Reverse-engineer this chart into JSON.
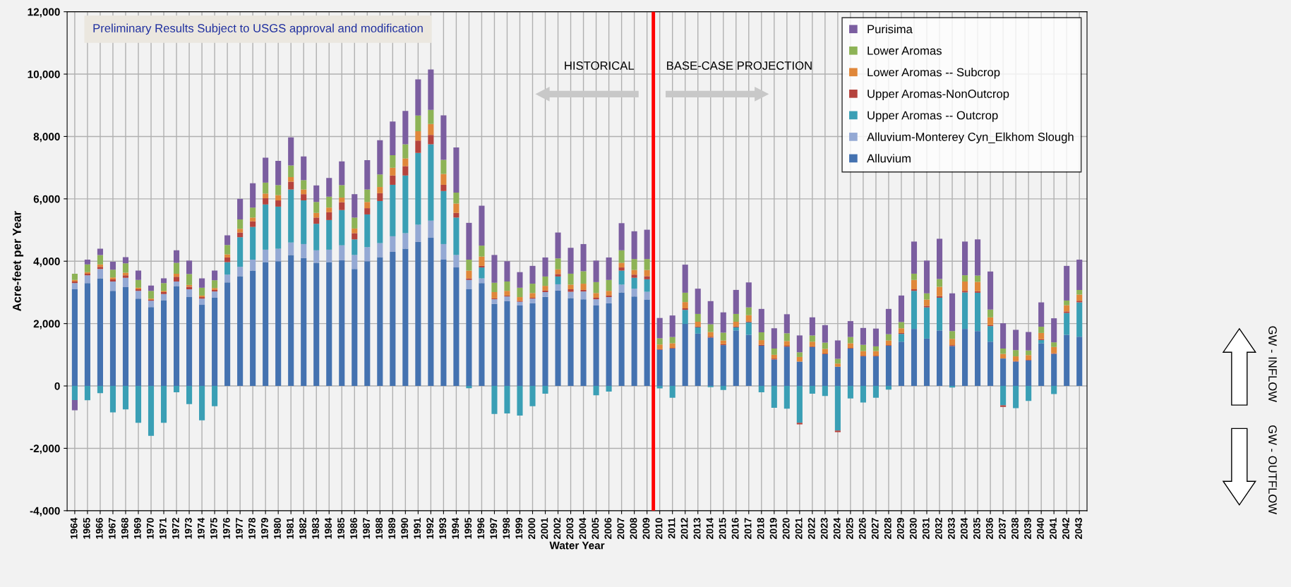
{
  "chart_data": {
    "type": "bar",
    "stacked": true,
    "xlabel": "Water Year",
    "ylabel": "Acre-feet per Year",
    "x": [
      1964,
      1965,
      1966,
      1967,
      1968,
      1969,
      1970,
      1971,
      1972,
      1973,
      1974,
      1975,
      1976,
      1977,
      1978,
      1979,
      1980,
      1981,
      1982,
      1983,
      1984,
      1985,
      1986,
      1987,
      1988,
      1989,
      1990,
      1991,
      1992,
      1993,
      1994,
      1995,
      1996,
      1997,
      1998,
      1999,
      2000,
      2001,
      2002,
      2003,
      2004,
      2005,
      2006,
      2007,
      2008,
      2009,
      2010,
      2011,
      2012,
      2013,
      2014,
      2015,
      2016,
      2017,
      2018,
      2019,
      2020,
      2021,
      2022,
      2023,
      2024,
      2025,
      2026,
      2027,
      2028,
      2029,
      2030,
      2031,
      2032,
      2033,
      2034,
      2035,
      2036,
      2037,
      2038,
      2039,
      2040,
      2041,
      2042,
      2043
    ],
    "xlim": [
      1963.4,
      2043.6
    ],
    "xticks": [
      1964,
      1965,
      1966,
      1967,
      1968,
      1969,
      1970,
      1971,
      1972,
      1973,
      1974,
      1975,
      1976,
      1977,
      1978,
      1979,
      1980,
      1981,
      1982,
      1983,
      1984,
      1985,
      1986,
      1987,
      1988,
      1989,
      1990,
      1991,
      1992,
      1993,
      1994,
      1995,
      1996,
      1997,
      1998,
      1999,
      2000,
      2001,
      2002,
      2003,
      2004,
      2005,
      2006,
      2007,
      2008,
      2009,
      2010,
      2011,
      2012,
      2013,
      2014,
      2015,
      2016,
      2017,
      2018,
      2019,
      2020,
      2021,
      2022,
      2023,
      2024,
      2025,
      2026,
      2027,
      2028,
      2029,
      2030,
      2031,
      2032,
      2033,
      2034,
      2035,
      2036,
      2037,
      2038,
      2039,
      2040,
      2041,
      2042,
      2043
    ],
    "ylim": [
      -4000,
      12000
    ],
    "yticks": [
      {
        "value": -4000,
        "label": "-4,000"
      },
      {
        "value": -2000,
        "label": "-2,000"
      },
      0,
      {
        "value": 2000,
        "label": "2,000"
      },
      {
        "value": 4000,
        "label": "4,000"
      },
      {
        "value": 6000,
        "label": "6,000"
      },
      {
        "value": 8000,
        "label": "8,000"
      },
      {
        "value": 10000,
        "label": "10,000"
      },
      {
        "value": 12000,
        "label": "12,000"
      }
    ],
    "grid": true,
    "legend": "top right",
    "ref_lines": [
      {
        "axis": "x",
        "value": 2009.5,
        "color": "#ff0000"
      }
    ],
    "annotations": [
      "Preliminary Results Subject to USGS approval and modification",
      "HISTORICAL",
      "BASE-CASE PROJECTION",
      "GW - INFLOW",
      "GW - OUTFLOW"
    ],
    "series": [
      {
        "name": "Alluvium",
        "color": "#4472b0",
        "values": [
          3100,
          3300,
          3450,
          3050,
          3170,
          2800,
          2530,
          2750,
          3200,
          2850,
          2600,
          2830,
          3320,
          3520,
          3700,
          3970,
          4000,
          4200,
          4100,
          3950,
          3970,
          4030,
          3750,
          4000,
          4130,
          4300,
          4400,
          4620,
          4750,
          4050,
          3800,
          3100,
          3300,
          2630,
          2720,
          2580,
          2650,
          2860,
          3060,
          2820,
          2780,
          2580,
          2650,
          3000,
          2870,
          2770,
          1160,
          1200,
          1990,
          1680,
          1550,
          1310,
          1780,
          1640,
          1290,
          850,
          1260,
          780,
          1250,
          1020,
          620,
          1200,
          950,
          950,
          1290,
          1420,
          1830,
          1520,
          1780,
          1280,
          1830,
          1760,
          1420,
          880,
          780,
          820,
          1370,
          1030,
          1640,
          1580
        ]
      },
      {
        "name": "Alluvium-Monterey Cyn_Elkhom Slough",
        "color": "#94a9d4",
        "values": [
          200,
          250,
          300,
          300,
          300,
          250,
          200,
          200,
          150,
          250,
          200,
          200,
          250,
          300,
          350,
          400,
          400,
          400,
          450,
          400,
          400,
          480,
          450,
          450,
          450,
          500,
          500,
          550,
          550,
          500,
          400,
          300,
          150,
          150,
          150,
          120,
          150,
          150,
          200,
          200,
          250,
          200,
          200,
          250,
          250,
          250,
          0,
          0,
          0,
          0,
          0,
          0,
          0,
          0,
          0,
          0,
          0,
          0,
          0,
          0,
          0,
          0,
          0,
          0,
          0,
          0,
          0,
          0,
          0,
          0,
          0,
          0,
          0,
          0,
          0,
          0,
          0,
          0,
          0,
          0
        ]
      },
      {
        "name": "Upper Aromas -- Outcrop",
        "color": "#3a9fb5",
        "values": [
          -450,
          -460,
          -230,
          -850,
          -750,
          -1180,
          -1600,
          -1180,
          -200,
          -580,
          -1100,
          -650,
          400,
          950,
          1050,
          1450,
          1350,
          1700,
          1400,
          850,
          950,
          1130,
          500,
          1050,
          1350,
          1650,
          1850,
          2300,
          2450,
          1700,
          1200,
          -70,
          350,
          -900,
          -880,
          -950,
          -650,
          -250,
          250,
          0,
          0,
          -300,
          -180,
          450,
          350,
          400,
          -80,
          -380,
          450,
          200,
          -40,
          -130,
          100,
          400,
          -200,
          -700,
          -730,
          -1180,
          -250,
          -320,
          -1430,
          -400,
          -530,
          -380,
          -120,
          250,
          1220,
          1000,
          1050,
          -50,
          1170,
          1230,
          500,
          -620,
          -710,
          -480,
          100,
          -260,
          700,
          1100
        ]
      },
      {
        "name": "Upper Aromas-NonOutcrop",
        "color": "#b5433d",
        "values": [
          50,
          50,
          70,
          70,
          80,
          50,
          30,
          60,
          150,
          80,
          50,
          50,
          150,
          150,
          180,
          200,
          200,
          250,
          200,
          200,
          250,
          250,
          200,
          200,
          250,
          300,
          300,
          400,
          300,
          200,
          150,
          50,
          50,
          30,
          30,
          30,
          30,
          50,
          80,
          80,
          50,
          50,
          50,
          100,
          100,
          100,
          20,
          20,
          50,
          30,
          30,
          30,
          30,
          30,
          30,
          30,
          30,
          -50,
          20,
          20,
          -50,
          20,
          20,
          20,
          20,
          30,
          50,
          50,
          50,
          30,
          50,
          50,
          30,
          -50,
          20,
          20,
          30,
          20,
          50,
          50
        ]
      },
      {
        "name": "Lower Aromas -- Subcrop",
        "color": "#e0873a",
        "values": [
          50,
          50,
          80,
          60,
          80,
          50,
          40,
          40,
          100,
          60,
          50,
          60,
          100,
          120,
          120,
          150,
          170,
          150,
          150,
          150,
          150,
          150,
          150,
          200,
          200,
          250,
          250,
          300,
          350,
          350,
          300,
          250,
          300,
          200,
          150,
          120,
          150,
          150,
          150,
          150,
          200,
          150,
          150,
          150,
          150,
          200,
          150,
          150,
          200,
          150,
          150,
          120,
          150,
          200,
          150,
          120,
          150,
          150,
          150,
          150,
          100,
          150,
          150,
          150,
          150,
          150,
          300,
          200,
          300,
          200,
          300,
          300,
          250,
          150,
          150,
          150,
          200,
          200,
          200,
          200
        ]
      },
      {
        "name": "Lower Aromas",
        "color": "#8db356",
        "values": [
          200,
          250,
          300,
          250,
          300,
          250,
          250,
          250,
          350,
          350,
          250,
          250,
          300,
          300,
          320,
          350,
          320,
          370,
          300,
          350,
          350,
          400,
          350,
          400,
          400,
          400,
          450,
          500,
          450,
          450,
          350,
          350,
          350,
          300,
          300,
          300,
          300,
          300,
          350,
          350,
          400,
          350,
          350,
          400,
          350,
          350,
          200,
          200,
          300,
          250,
          250,
          250,
          250,
          250,
          250,
          200,
          250,
          150,
          200,
          200,
          150,
          200,
          200,
          150,
          200,
          200,
          200,
          200,
          250,
          250,
          200,
          200,
          250,
          170,
          200,
          150,
          200,
          150,
          150,
          150
        ]
      },
      {
        "name": "Purisima",
        "color": "#7b5ea0",
        "values": [
          -330,
          150,
          200,
          250,
          200,
          300,
          170,
          150,
          400,
          430,
          300,
          310,
          310,
          660,
          780,
          800,
          780,
          900,
          760,
          530,
          600,
          760,
          750,
          940,
          1100,
          1080,
          1070,
          1160,
          1300,
          1430,
          1450,
          1180,
          1280,
          890,
          650,
          500,
          570,
          610,
          830,
          830,
          870,
          690,
          720,
          870,
          890,
          940,
          650,
          690,
          900,
          810,
          740,
          650,
          770,
          800,
          750,
          650,
          610,
          540,
          580,
          560,
          590,
          510,
          540,
          570,
          810,
          850,
          1030,
          1050,
          1290,
          1210,
          1080,
          1160,
          1220,
          810,
          650,
          590,
          780,
          770,
          1110,
          970
        ]
      }
    ]
  }
}
